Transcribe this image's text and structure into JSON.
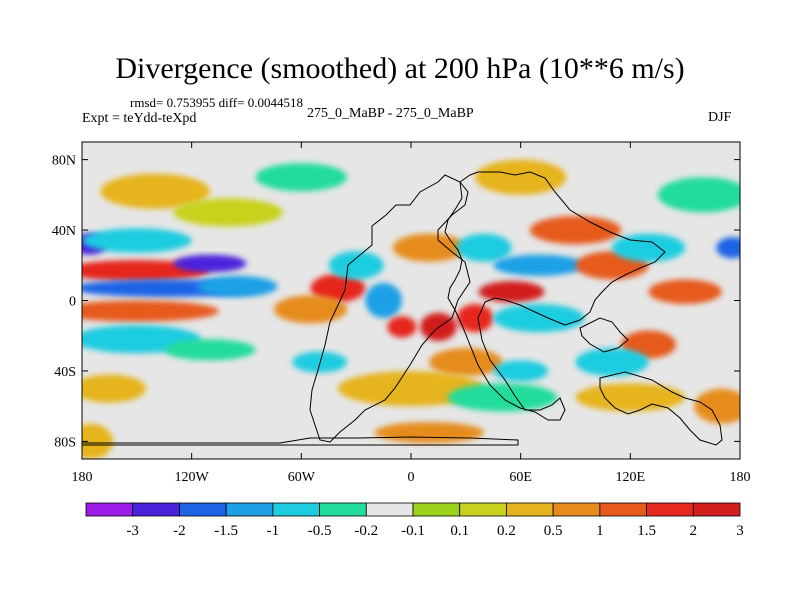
{
  "chart_data": {
    "type": "heatmap",
    "title": "Divergence (smoothed) at 200 hPa (10**6 m/s)",
    "stats_line": "rmsd= 0.753955 diff= 0.0044518",
    "left_label": "Expt = teYdd-teXpd",
    "center_label": "275_0_MaBP - 275_0_MaBP",
    "right_label": "DJF",
    "xlabel": "",
    "ylabel": "",
    "x_range": [
      -180,
      180
    ],
    "y_range": [
      -90,
      90
    ],
    "x_ticks": [
      {
        "value": -180,
        "label": "180"
      },
      {
        "value": -120,
        "label": "120W"
      },
      {
        "value": -60,
        "label": "60W"
      },
      {
        "value": 0,
        "label": "0"
      },
      {
        "value": 60,
        "label": "60E"
      },
      {
        "value": 120,
        "label": "120E"
      },
      {
        "value": 180,
        "label": "180"
      }
    ],
    "y_ticks": [
      {
        "value": 80,
        "label": "80N"
      },
      {
        "value": 40,
        "label": "40N"
      },
      {
        "value": 0,
        "label": "0"
      },
      {
        "value": -40,
        "label": "40S"
      },
      {
        "value": -80,
        "label": "80S"
      }
    ],
    "colorbar": {
      "labels": [
        "-3",
        "-2",
        "-1.5",
        "-1",
        "-0.5",
        "-0.2",
        "-0.1",
        "0.1",
        "0.2",
        "0.5",
        "1",
        "1.5",
        "2",
        "3"
      ],
      "colors": [
        "#9b1ce6",
        "#4b22dc",
        "#1e64e6",
        "#1fa0e6",
        "#1ecce0",
        "#22dc9c",
        "#e6e6e6",
        "#9ad21e",
        "#c8d21e",
        "#e6b41e",
        "#e68c1e",
        "#e65a1e",
        "#e6281e",
        "#d21e1e"
      ]
    },
    "features": [
      {
        "lon": -176,
        "lat": 32,
        "value": -2.2,
        "rx": 10,
        "ry": 6
      },
      {
        "lon": 176,
        "lat": 30,
        "value": -1.8,
        "rx": 9,
        "ry": 6
      },
      {
        "lon": -150,
        "lat": 34,
        "value": -0.8,
        "rx": 30,
        "ry": 7
      },
      {
        "lon": -150,
        "lat": 17,
        "value": 1.7,
        "rx": 40,
        "ry": 6
      },
      {
        "lon": -135,
        "lat": 7,
        "value": -1.8,
        "rx": 50,
        "ry": 5
      },
      {
        "lon": -150,
        "lat": -6,
        "value": 1.3,
        "rx": 45,
        "ry": 6
      },
      {
        "lon": -110,
        "lat": 21,
        "value": -2.4,
        "rx": 20,
        "ry": 5
      },
      {
        "lon": -95,
        "lat": 8,
        "value": -1.2,
        "rx": 22,
        "ry": 6
      },
      {
        "lon": -150,
        "lat": -22,
        "value": -0.6,
        "rx": 35,
        "ry": 8
      },
      {
        "lon": -110,
        "lat": -28,
        "value": -0.4,
        "rx": 25,
        "ry": 6
      },
      {
        "lon": -140,
        "lat": 62,
        "value": 0.3,
        "rx": 30,
        "ry": 10
      },
      {
        "lon": -100,
        "lat": 50,
        "value": 0.15,
        "rx": 30,
        "ry": 8
      },
      {
        "lon": -165,
        "lat": -50,
        "value": 0.3,
        "rx": 20,
        "ry": 8
      },
      {
        "lon": -175,
        "lat": -80,
        "value": 0.4,
        "rx": 12,
        "ry": 10
      },
      {
        "lon": -40,
        "lat": 7,
        "value": 1.5,
        "rx": 15,
        "ry": 8
      },
      {
        "lon": -55,
        "lat": -5,
        "value": 0.8,
        "rx": 20,
        "ry": 8
      },
      {
        "lon": -30,
        "lat": 20,
        "value": -0.8,
        "rx": 15,
        "ry": 8
      },
      {
        "lon": -15,
        "lat": 0,
        "value": -1.3,
        "rx": 10,
        "ry": 10
      },
      {
        "lon": -5,
        "lat": -15,
        "value": 1.6,
        "rx": 8,
        "ry": 6
      },
      {
        "lon": 15,
        "lat": -15,
        "value": 2.2,
        "rx": 10,
        "ry": 8
      },
      {
        "lon": 35,
        "lat": -10,
        "value": 1.8,
        "rx": 10,
        "ry": 8
      },
      {
        "lon": 10,
        "lat": 30,
        "value": 0.9,
        "rx": 20,
        "ry": 8
      },
      {
        "lon": 40,
        "lat": 30,
        "value": -0.8,
        "rx": 15,
        "ry": 8
      },
      {
        "lon": 55,
        "lat": 5,
        "value": 2.5,
        "rx": 18,
        "ry": 6
      },
      {
        "lon": 70,
        "lat": 20,
        "value": -1.1,
        "rx": 25,
        "ry": 6
      },
      {
        "lon": 70,
        "lat": -10,
        "value": -1.0,
        "rx": 25,
        "ry": 8
      },
      {
        "lon": 90,
        "lat": 40,
        "value": 1.2,
        "rx": 25,
        "ry": 8
      },
      {
        "lon": 60,
        "lat": 70,
        "value": 0.3,
        "rx": 25,
        "ry": 10
      },
      {
        "lon": 110,
        "lat": 20,
        "value": 1.0,
        "rx": 20,
        "ry": 8
      },
      {
        "lon": 130,
        "lat": 30,
        "value": -0.6,
        "rx": 20,
        "ry": 8
      },
      {
        "lon": 150,
        "lat": 5,
        "value": 1.3,
        "rx": 20,
        "ry": 7
      },
      {
        "lon": 130,
        "lat": -25,
        "value": 1.1,
        "rx": 15,
        "ry": 8
      },
      {
        "lon": 110,
        "lat": -35,
        "value": -0.8,
        "rx": 20,
        "ry": 8
      },
      {
        "lon": 30,
        "lat": -35,
        "value": 0.8,
        "rx": 20,
        "ry": 8
      },
      {
        "lon": 60,
        "lat": -40,
        "value": -0.6,
        "rx": 15,
        "ry": 6
      },
      {
        "lon": -50,
        "lat": -35,
        "value": -0.7,
        "rx": 15,
        "ry": 6
      },
      {
        "lon": 0,
        "lat": -50,
        "value": 0.3,
        "rx": 40,
        "ry": 10
      },
      {
        "lon": 50,
        "lat": -55,
        "value": -0.3,
        "rx": 30,
        "ry": 8
      },
      {
        "lon": 10,
        "lat": -75,
        "value": 0.8,
        "rx": 30,
        "ry": 6
      },
      {
        "lon": 120,
        "lat": -55,
        "value": 0.4,
        "rx": 30,
        "ry": 8
      },
      {
        "lon": 170,
        "lat": -60,
        "value": 0.6,
        "rx": 15,
        "ry": 10
      },
      {
        "lon": 160,
        "lat": 60,
        "value": -0.3,
        "rx": 25,
        "ry": 10
      },
      {
        "lon": -60,
        "lat": 70,
        "value": -0.3,
        "rx": 25,
        "ry": 8
      }
    ]
  }
}
